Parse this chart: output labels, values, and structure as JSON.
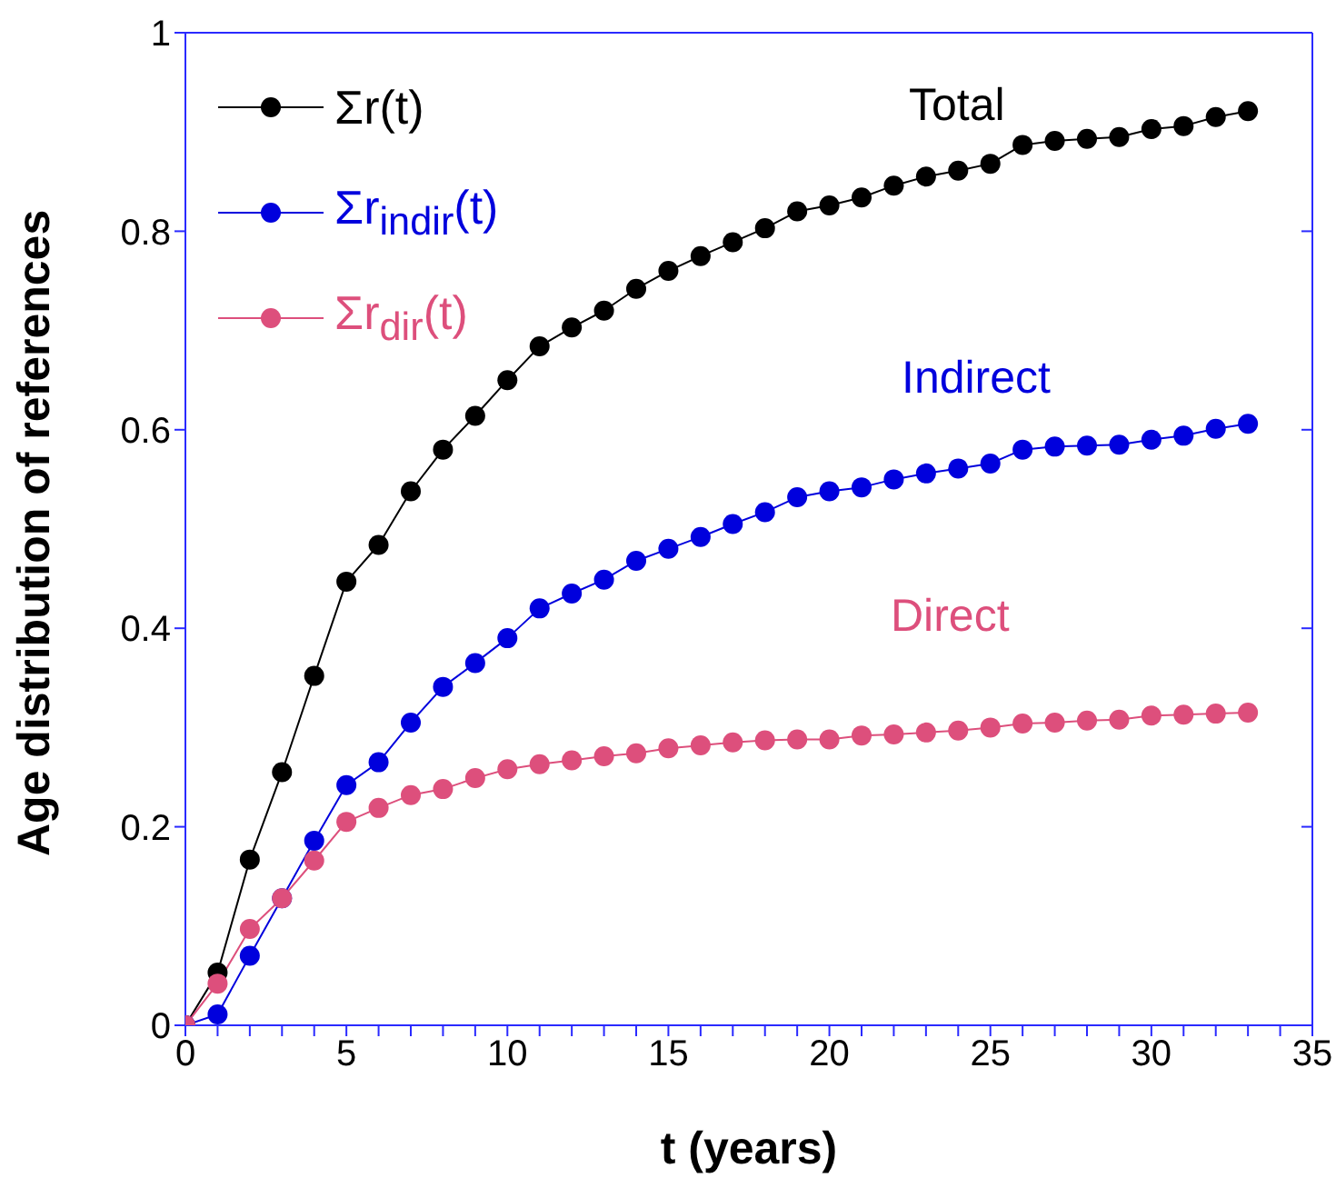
{
  "chart_data": {
    "type": "line",
    "xlabel": "t (years)",
    "ylabel": "Age distribution of references",
    "x": [
      0,
      1,
      2,
      3,
      4,
      5,
      6,
      7,
      8,
      9,
      10,
      11,
      12,
      13,
      14,
      15,
      16,
      17,
      18,
      19,
      20,
      21,
      22,
      23,
      24,
      25,
      26,
      27,
      28,
      29,
      30,
      31,
      32,
      33
    ],
    "series": [
      {
        "name": "Σr(t)",
        "color": "#000000",
        "values": [
          0,
          0.053,
          0.167,
          0.255,
          0.352,
          0.447,
          0.484,
          0.538,
          0.58,
          0.614,
          0.65,
          0.684,
          0.703,
          0.72,
          0.742,
          0.76,
          0.775,
          0.789,
          0.803,
          0.82,
          0.826,
          0.834,
          0.846,
          0.855,
          0.861,
          0.868,
          0.887,
          0.891,
          0.893,
          0.895,
          0.903,
          0.906,
          0.915,
          0.921
        ]
      },
      {
        "name": "Σr$_{indir}$(t)",
        "color": "#0000dd",
        "values": [
          0,
          0.011,
          0.07,
          0.128,
          0.186,
          0.242,
          0.265,
          0.305,
          0.341,
          0.365,
          0.39,
          0.42,
          0.435,
          0.449,
          0.468,
          0.48,
          0.492,
          0.505,
          0.517,
          0.532,
          0.538,
          0.542,
          0.55,
          0.556,
          0.561,
          0.566,
          0.58,
          0.583,
          0.584,
          0.585,
          0.59,
          0.594,
          0.601,
          0.606
        ]
      },
      {
        "name": "Σr$_{dir}$(t)",
        "color": "#dd4f7c",
        "values": [
          0,
          0.042,
          0.097,
          0.128,
          0.166,
          0.205,
          0.219,
          0.232,
          0.238,
          0.249,
          0.258,
          0.263,
          0.267,
          0.271,
          0.274,
          0.279,
          0.282,
          0.285,
          0.287,
          0.288,
          0.288,
          0.292,
          0.293,
          0.295,
          0.297,
          0.3,
          0.304,
          0.305,
          0.307,
          0.308,
          0.312,
          0.313,
          0.314,
          0.315
        ]
      }
    ],
    "annotations": [
      "Total",
      "Indirect",
      "Direct"
    ],
    "xlim": [
      0,
      35
    ],
    "xticks": [
      0,
      {
        "value": 1,
        "label": null
      },
      {
        "value": 2,
        "label": null
      },
      {
        "value": 3,
        "label": null
      },
      {
        "value": 4,
        "label": null
      },
      5,
      {
        "value": 6,
        "label": null
      },
      {
        "value": 7,
        "label": null
      },
      {
        "value": 8,
        "label": null
      },
      {
        "value": 9,
        "label": null
      },
      10,
      {
        "value": 11,
        "label": null
      },
      {
        "value": 12,
        "label": null
      },
      {
        "value": 13,
        "label": null
      },
      {
        "value": 14,
        "label": null
      },
      15,
      {
        "value": 16,
        "label": null
      },
      {
        "value": 17,
        "label": null
      },
      {
        "value": 18,
        "label": null
      },
      {
        "value": 19,
        "label": null
      },
      20,
      {
        "value": 21,
        "label": null
      },
      {
        "value": 22,
        "label": null
      },
      {
        "value": 23,
        "label": null
      },
      {
        "value": 24,
        "label": null
      },
      25,
      {
        "value": 26,
        "label": null
      },
      {
        "value": 27,
        "label": null
      },
      {
        "value": 28,
        "label": null
      },
      {
        "value": 29,
        "label": null
      },
      30,
      {
        "value": 31,
        "label": null
      },
      {
        "value": 32,
        "label": null
      },
      {
        "value": 33,
        "label": null
      },
      {
        "value": 34,
        "label": null
      },
      35
    ],
    "ylim": [
      0,
      1
    ],
    "yticks": [
      0,
      0.2,
      0.4,
      0.6,
      0.8,
      1
    ],
    "legend": "top left",
    "marker": "circle",
    "line_style": "solid"
  }
}
